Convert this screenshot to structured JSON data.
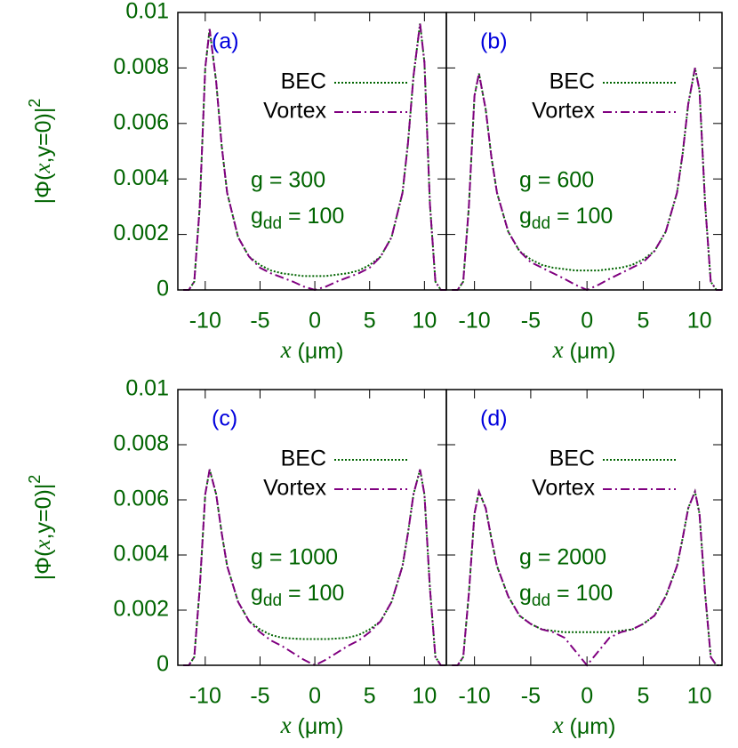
{
  "chart_data": [
    {
      "type": "line",
      "panel_label": "(a)",
      "annotations": [
        "g = 300",
        [
          "g",
          "dd",
          " = 100"
        ]
      ],
      "ylabel": [
        "|Φ(",
        "x",
        ",y=0)|",
        "2"
      ],
      "xlabel": [
        "x",
        " (μm)"
      ],
      "xlim": [
        -12.5,
        12
      ],
      "ylim": [
        0,
        0.01
      ],
      "xticks": [
        -10,
        -5,
        0,
        5,
        10
      ],
      "yticks": [
        0,
        0.002,
        0.004,
        0.006,
        0.008,
        0.01
      ],
      "legend": "top-right",
      "x": [
        -12,
        -11.5,
        -11,
        -10.5,
        -10,
        -9.6,
        -9,
        -8.5,
        -8,
        -7,
        -6,
        -5,
        -4,
        -3,
        -2,
        -1,
        0,
        1,
        2,
        3,
        4,
        5,
        6,
        7,
        8,
        8.5,
        9,
        9.6,
        10,
        10.5,
        11,
        11.5,
        12
      ],
      "series": [
        {
          "name": "BEC",
          "color": "#006400",
          "values": [
            0,
            0,
            0.0003,
            0.003,
            0.008,
            0.0094,
            0.0075,
            0.0052,
            0.0035,
            0.0019,
            0.0012,
            0.0009,
            0.0007,
            0.0006,
            0.00055,
            0.0005,
            0.0005,
            0.0005,
            0.00055,
            0.0006,
            0.0007,
            0.0009,
            0.0012,
            0.0019,
            0.0035,
            0.0053,
            0.0077,
            0.0096,
            0.0082,
            0.0031,
            0.0003,
            0,
            0
          ]
        },
        {
          "name": "Vortex",
          "color": "#800080",
          "values": [
            0,
            0,
            0.0003,
            0.003,
            0.008,
            0.0094,
            0.0075,
            0.0052,
            0.0035,
            0.0019,
            0.0012,
            0.0008,
            0.0006,
            0.00045,
            0.0003,
            0.00012,
            0,
            0.00012,
            0.0003,
            0.00045,
            0.0006,
            0.0008,
            0.0012,
            0.0019,
            0.0035,
            0.0053,
            0.0077,
            0.0096,
            0.0082,
            0.0031,
            0.0003,
            0,
            0
          ]
        }
      ]
    },
    {
      "type": "line",
      "panel_label": "(b)",
      "annotations": [
        "g = 600",
        [
          "g",
          "dd",
          " = 100"
        ]
      ],
      "xlabel": [
        "x",
        " (μm)"
      ],
      "xlim": [
        -12.5,
        12
      ],
      "ylim": [
        0,
        0.01
      ],
      "xticks": [
        -10,
        -5,
        0,
        5,
        10
      ],
      "yticks": [
        0,
        0.002,
        0.004,
        0.006,
        0.008,
        0.01
      ],
      "legend": "top-right",
      "x": [
        -12,
        -11.5,
        -11,
        -10.5,
        -10,
        -9.6,
        -9,
        -8.5,
        -8,
        -7,
        -6,
        -5,
        -4,
        -3,
        -2,
        -1,
        0,
        1,
        2,
        3,
        4,
        5,
        6,
        7,
        8,
        8.5,
        9,
        9.6,
        10,
        10.5,
        11,
        11.5,
        12
      ],
      "series": [
        {
          "name": "BEC",
          "color": "#006400",
          "values": [
            0,
            0,
            0.0003,
            0.003,
            0.007,
            0.0078,
            0.0065,
            0.0048,
            0.0035,
            0.0021,
            0.0014,
            0.0011,
            0.0009,
            0.0008,
            0.00075,
            0.0007,
            0.0007,
            0.0007,
            0.00075,
            0.0008,
            0.0009,
            0.0011,
            0.0014,
            0.0021,
            0.0035,
            0.0049,
            0.0067,
            0.008,
            0.0072,
            0.0031,
            0.0003,
            0,
            0
          ]
        },
        {
          "name": "Vortex",
          "color": "#800080",
          "values": [
            0,
            0,
            0.0003,
            0.003,
            0.007,
            0.0078,
            0.0065,
            0.0048,
            0.0035,
            0.0021,
            0.0014,
            0.001,
            0.0008,
            0.0006,
            0.0004,
            0.00018,
            0,
            0.00018,
            0.0004,
            0.0006,
            0.0008,
            0.001,
            0.0014,
            0.0021,
            0.0035,
            0.0049,
            0.0067,
            0.008,
            0.0072,
            0.0031,
            0.0003,
            0,
            0
          ]
        }
      ]
    },
    {
      "type": "line",
      "panel_label": "(c)",
      "annotations": [
        "g = 1000",
        [
          "g",
          "dd",
          " = 100"
        ]
      ],
      "ylabel": [
        "|Φ(",
        "x",
        ",y=0)|",
        "2"
      ],
      "xlabel": [
        "x",
        " (μm)"
      ],
      "xlim": [
        -12.5,
        12
      ],
      "ylim": [
        0,
        0.01
      ],
      "xticks": [
        -10,
        -5,
        0,
        5,
        10
      ],
      "yticks": [
        0,
        0.002,
        0.004,
        0.006,
        0.008,
        0.01
      ],
      "legend": "top-right",
      "x": [
        -12,
        -11.5,
        -11,
        -10.5,
        -10,
        -9.6,
        -9,
        -8.5,
        -8,
        -7,
        -6,
        -5,
        -4,
        -3,
        -2,
        -1,
        0,
        1,
        2,
        3,
        4,
        5,
        6,
        7,
        8,
        8.5,
        9,
        9.6,
        10,
        10.5,
        11,
        11.5,
        12
      ],
      "series": [
        {
          "name": "BEC",
          "color": "#006400",
          "values": [
            0,
            0,
            0.0003,
            0.0028,
            0.0062,
            0.0071,
            0.0062,
            0.0048,
            0.0036,
            0.0023,
            0.0016,
            0.0013,
            0.0011,
            0.001,
            0.00097,
            0.00095,
            0.00095,
            0.00095,
            0.00097,
            0.001,
            0.0011,
            0.0013,
            0.0016,
            0.0023,
            0.0036,
            0.0048,
            0.0062,
            0.0071,
            0.0062,
            0.0028,
            0.0003,
            0,
            0
          ]
        },
        {
          "name": "Vortex",
          "color": "#800080",
          "values": [
            0,
            0,
            0.0003,
            0.0028,
            0.0062,
            0.0071,
            0.0062,
            0.0048,
            0.0036,
            0.0023,
            0.0016,
            0.0012,
            0.0009,
            0.0007,
            0.00045,
            0.0002,
            0,
            0.0002,
            0.00045,
            0.0007,
            0.0009,
            0.0012,
            0.0016,
            0.0023,
            0.0036,
            0.0048,
            0.0062,
            0.0071,
            0.0062,
            0.0028,
            0.0003,
            0,
            0
          ]
        }
      ]
    },
    {
      "type": "line",
      "panel_label": "(d)",
      "annotations": [
        "g = 2000",
        [
          "g",
          "dd",
          " = 100"
        ]
      ],
      "xlabel": [
        "x",
        " (μm)"
      ],
      "xlim": [
        -12.5,
        12
      ],
      "ylim": [
        0,
        0.01
      ],
      "xticks": [
        -10,
        -5,
        0,
        5,
        10
      ],
      "yticks": [
        0,
        0.002,
        0.004,
        0.006,
        0.008,
        0.01
      ],
      "legend": "top-right",
      "x": [
        -12,
        -11.5,
        -11,
        -10.5,
        -10,
        -9.6,
        -9,
        -8.5,
        -8,
        -7,
        -6,
        -5,
        -4,
        -3,
        -2,
        -1,
        0,
        1,
        2,
        3,
        4,
        5,
        6,
        7,
        8,
        8.5,
        9,
        9.6,
        10,
        10.5,
        11,
        11.5,
        12
      ],
      "series": [
        {
          "name": "BEC",
          "color": "#006400",
          "values": [
            0,
            0,
            0.0003,
            0.0026,
            0.0055,
            0.0063,
            0.0057,
            0.0046,
            0.0036,
            0.0025,
            0.0018,
            0.0015,
            0.0013,
            0.00125,
            0.0012,
            0.0012,
            0.0012,
            0.0012,
            0.0012,
            0.00125,
            0.0013,
            0.0015,
            0.0018,
            0.0025,
            0.0036,
            0.0046,
            0.0057,
            0.0063,
            0.0055,
            0.0026,
            0.0003,
            0,
            0
          ]
        },
        {
          "name": "Vortex",
          "color": "#800080",
          "values": [
            0,
            0,
            0.0003,
            0.0026,
            0.0055,
            0.0063,
            0.0057,
            0.0046,
            0.0036,
            0.0025,
            0.0018,
            0.0015,
            0.0013,
            0.0012,
            0.001,
            0.0005,
            0,
            0.0005,
            0.001,
            0.0012,
            0.0013,
            0.0015,
            0.0018,
            0.0025,
            0.0036,
            0.0046,
            0.0057,
            0.0063,
            0.0055,
            0.0026,
            0.0003,
            0,
            0
          ]
        }
      ]
    }
  ]
}
